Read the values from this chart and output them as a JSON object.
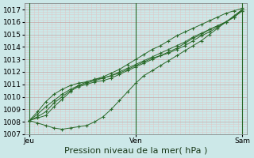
{
  "background_color": "#cce8e8",
  "grid_major_color": "#c8a8a8",
  "grid_minor_color": "#ddc8c8",
  "line_color": "#2a6a2a",
  "marker_color": "#2a6a2a",
  "vline_color": "#2a6a2a",
  "xlabel": "Pression niveau de la mer( hPa )",
  "ylim": [
    1007.0,
    1017.5
  ],
  "yticks": [
    1007,
    1008,
    1009,
    1010,
    1011,
    1012,
    1013,
    1014,
    1015,
    1016,
    1017
  ],
  "xtick_labels": [
    "Jeu",
    "Ven",
    "Sam"
  ],
  "xtick_positions": [
    0.0,
    48.0,
    96.0
  ],
  "xlim": [
    -2,
    98
  ],
  "vlines": [
    0.0,
    48.0,
    96.0
  ],
  "series": [
    [
      1008.1,
      1008.3,
      1008.5,
      1009.2,
      1009.8,
      1010.4,
      1010.9,
      1011.2,
      1011.4,
      1011.6,
      1011.9,
      1012.2,
      1012.6,
      1013.0,
      1013.4,
      1013.8,
      1014.1,
      1014.5,
      1014.9,
      1015.2,
      1015.5,
      1015.8,
      1016.1,
      1016.4,
      1016.7,
      1016.9,
      1017.1
    ],
    [
      1008.1,
      1007.9,
      1007.7,
      1007.5,
      1007.4,
      1007.5,
      1007.6,
      1007.7,
      1008.0,
      1008.4,
      1009.0,
      1009.7,
      1010.4,
      1011.1,
      1011.7,
      1012.1,
      1012.5,
      1012.9,
      1013.3,
      1013.7,
      1014.1,
      1014.5,
      1015.0,
      1015.5,
      1016.0,
      1016.5,
      1017.0
    ],
    [
      1008.1,
      1008.4,
      1008.8,
      1009.5,
      1010.0,
      1010.5,
      1010.8,
      1011.0,
      1011.2,
      1011.3,
      1011.5,
      1011.8,
      1012.1,
      1012.4,
      1012.7,
      1013.0,
      1013.3,
      1013.6,
      1013.9,
      1014.3,
      1014.7,
      1015.0,
      1015.4,
      1015.7,
      1016.0,
      1016.4,
      1017.0
    ],
    [
      1008.1,
      1008.6,
      1009.2,
      1009.7,
      1010.2,
      1010.6,
      1010.9,
      1011.1,
      1011.3,
      1011.5,
      1011.7,
      1012.0,
      1012.3,
      1012.6,
      1012.9,
      1013.2,
      1013.5,
      1013.8,
      1014.1,
      1014.4,
      1014.8,
      1015.1,
      1015.4,
      1015.7,
      1016.0,
      1016.4,
      1016.9
    ],
    [
      1008.1,
      1008.8,
      1009.6,
      1010.2,
      1010.6,
      1010.9,
      1011.1,
      1011.2,
      1011.4,
      1011.5,
      1011.7,
      1011.9,
      1012.2,
      1012.5,
      1012.8,
      1013.1,
      1013.3,
      1013.5,
      1013.8,
      1014.1,
      1014.5,
      1014.9,
      1015.2,
      1015.6,
      1016.0,
      1016.4,
      1016.9
    ]
  ],
  "xlabel_fontsize": 8,
  "tick_fontsize": 6.5
}
